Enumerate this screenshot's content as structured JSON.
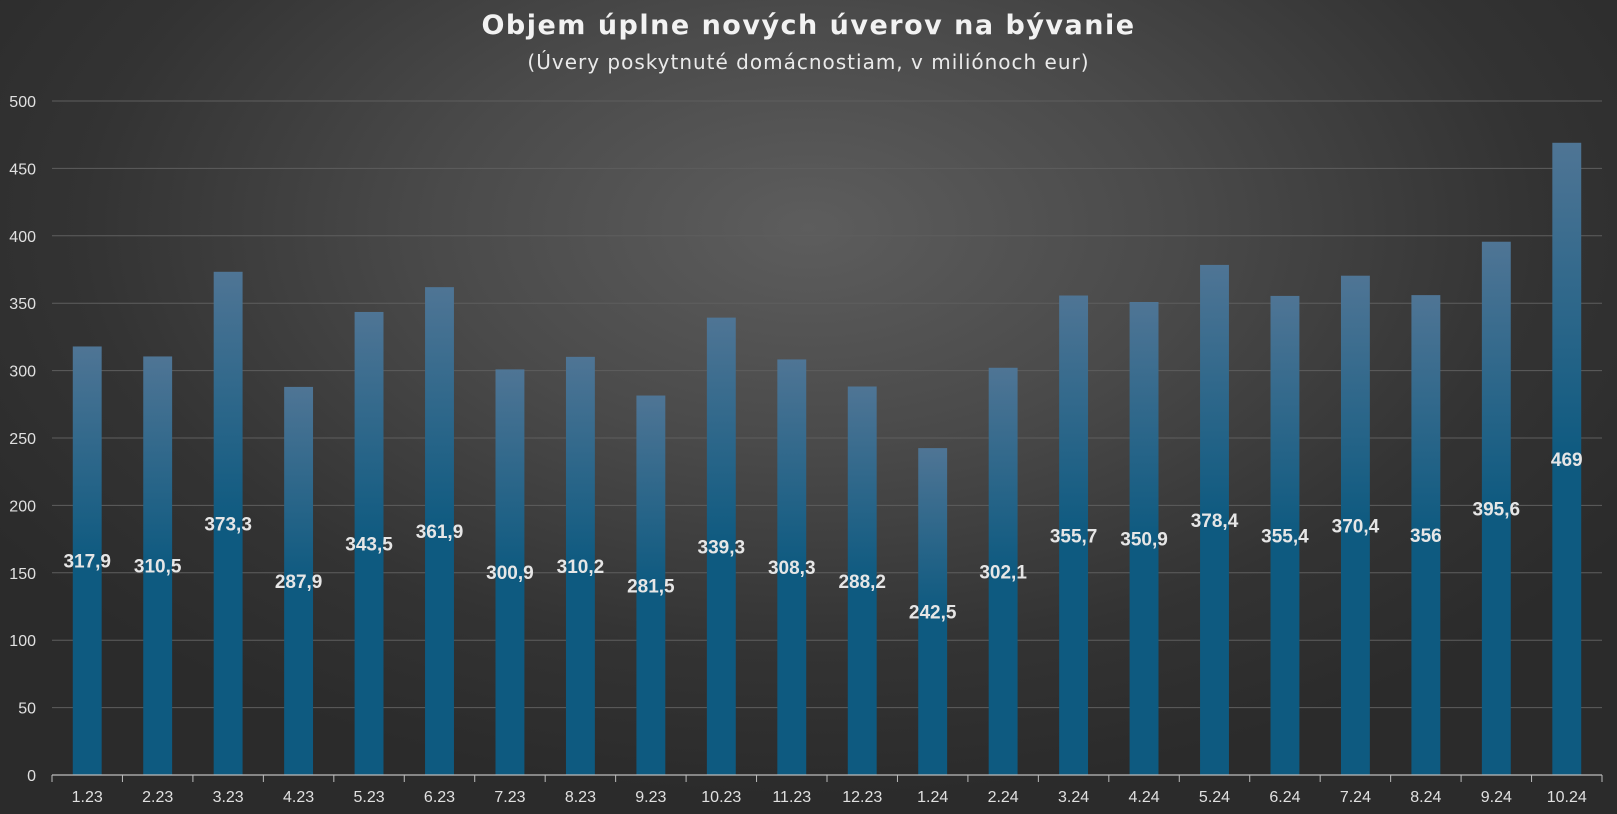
{
  "chart_data": {
    "type": "bar",
    "title": "Objem úplne nových úverov na bývanie",
    "subtitle": "(Úvery poskytnuté domácnostiam, v miliónoch eur)",
    "xlabel": "",
    "ylabel": "",
    "categories": [
      "1.23",
      "2.23",
      "3.23",
      "4.23",
      "5.23",
      "6.23",
      "7.23",
      "8.23",
      "9.23",
      "10.23",
      "11.23",
      "12.23",
      "1.24",
      "2.24",
      "3.24",
      "4.24",
      "5.24",
      "6.24",
      "7.24",
      "8.24",
      "9.24",
      "10.24"
    ],
    "values": [
      317.9,
      310.5,
      373.3,
      287.9,
      343.5,
      361.9,
      300.9,
      310.2,
      281.5,
      339.3,
      308.3,
      288.2,
      242.5,
      302.1,
      355.7,
      350.9,
      378.4,
      355.4,
      370.4,
      356,
      395.6,
      469
    ],
    "value_labels": [
      "317,9",
      "310,5",
      "373,3",
      "287,9",
      "343,5",
      "361,9",
      "300,9",
      "310,2",
      "281,5",
      "339,3",
      "308,3",
      "288,2",
      "242,5",
      "302,1",
      "355,7",
      "350,9",
      "378,4",
      "355,4",
      "370,4",
      "356",
      "395,6",
      "469"
    ],
    "ylim": [
      0,
      500
    ],
    "yticks": [
      0,
      50,
      100,
      150,
      200,
      250,
      300,
      350,
      400,
      450,
      500
    ],
    "grid": true,
    "legend": "none",
    "colors": {
      "bar_top": "#4f7595",
      "bar_bottom": "#0e5a80",
      "grid": "#5e5e5e",
      "axis": "#bdbdbd",
      "text": "#e6e6e6"
    }
  }
}
